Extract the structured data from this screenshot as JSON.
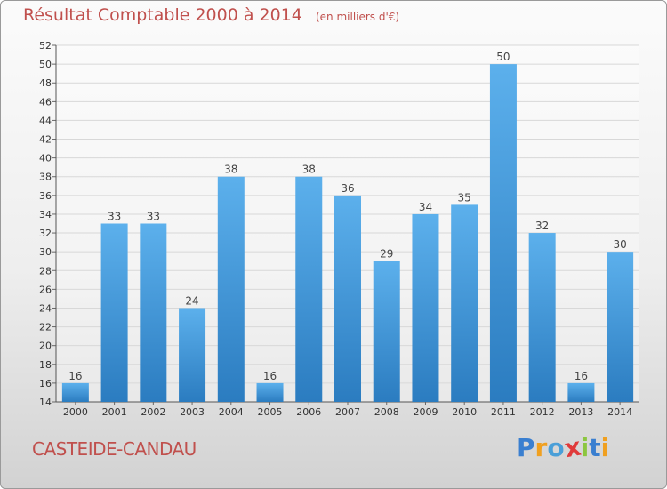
{
  "header": {
    "title": "Résultat Comptable 2000 à 2014",
    "subtitle": "(en milliers d'€)"
  },
  "town": "CASTEIDE-CANDAU",
  "logo": {
    "text": "Proxiti",
    "letter_colors": [
      "#3a7fd0",
      "#f0a020",
      "#4a9fd8",
      "#e03a3a",
      "#8cc63f",
      "#3a7fd0",
      "#f0a020"
    ]
  },
  "colors": {
    "bar_light": "#5cb0ec",
    "bar_dark": "#2b7cc0",
    "accent": "#c0504d",
    "grid": "#d8d8d8",
    "axis_text": "#333333"
  },
  "chart_data": {
    "type": "bar",
    "title": "Résultat Comptable 2000 à 2014",
    "subtitle": "(en milliers d'€)",
    "categories": [
      "2000",
      "2001",
      "2002",
      "2003",
      "2004",
      "2005",
      "2006",
      "2007",
      "2008",
      "2009",
      "2010",
      "2011",
      "2012",
      "2013",
      "2014"
    ],
    "values": [
      16,
      33,
      33,
      24,
      38,
      16,
      38,
      36,
      29,
      34,
      35,
      50,
      32,
      16,
      30
    ],
    "ylim": [
      14,
      52
    ],
    "ytick_step": 2,
    "grid": true,
    "data_labels": true,
    "xlabel": "",
    "ylabel": ""
  }
}
